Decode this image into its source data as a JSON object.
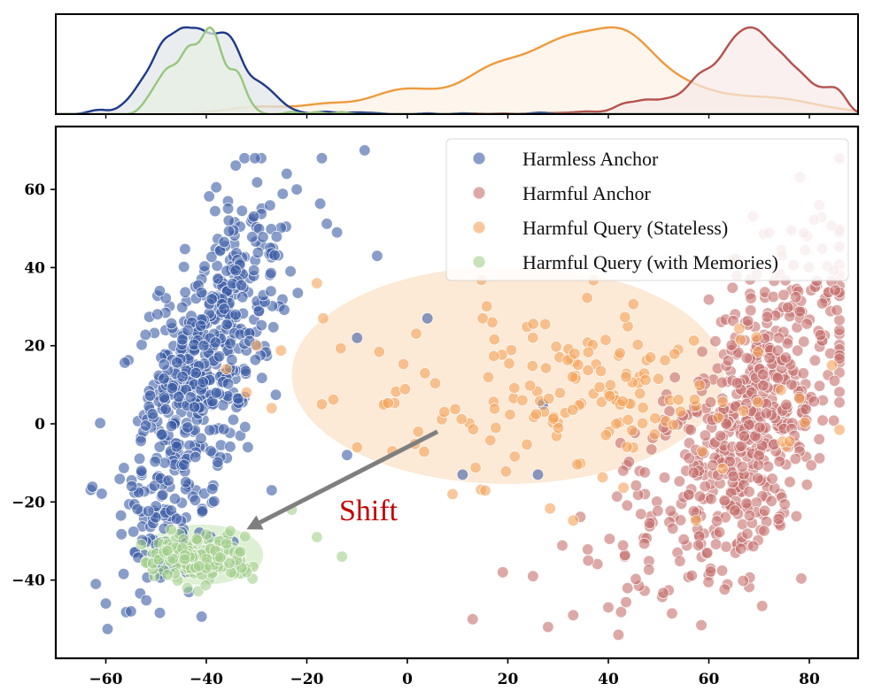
{
  "chart_data": {
    "type": "scatter",
    "title": "",
    "xlabel": "",
    "ylabel": "",
    "xlim": [
      -70,
      90
    ],
    "ylim": [
      -60,
      76
    ],
    "xticks": [
      -60,
      -40,
      -20,
      0,
      20,
      40,
      60,
      80
    ],
    "yticks": [
      -40,
      -20,
      0,
      20,
      40,
      60
    ],
    "x_tick_labels": [
      "−60",
      "−40",
      "−20",
      "0",
      "20",
      "40",
      "60",
      "80"
    ],
    "y_tick_labels": [
      "−40",
      "−20",
      "0",
      "20",
      "40",
      "60"
    ],
    "grid": false,
    "legend_position": "top-right",
    "annotation": {
      "text": "Shift",
      "color": "#c00000",
      "arrow_from": [
        6,
        -2
      ],
      "arrow_to": [
        -32,
        -27
      ]
    },
    "series": [
      {
        "name": "Harmless Anchor",
        "color": "#3b5ba5",
        "kde_color": "#1f3a8a",
        "kde_fill": "#dfe6ea",
        "clusters": [
          {
            "center": [
              -40,
              18
            ],
            "spread": [
              6,
              18
            ],
            "tilt": 0.78,
            "count": 520
          },
          {
            "center": [
              -48,
              -25
            ],
            "spread": [
              5,
              10
            ],
            "tilt": 0.4,
            "count": 90
          }
        ],
        "outliers": [
          [
            -8.5,
            70
          ],
          [
            -24,
            64
          ],
          [
            -6,
            43
          ],
          [
            -22,
            60
          ],
          [
            -14,
            49
          ],
          [
            4,
            27
          ],
          [
            -10,
            22
          ],
          [
            -12,
            -8
          ],
          [
            -27,
            -17
          ],
          [
            -62,
            -41
          ],
          [
            -60,
            -46
          ],
          [
            -55,
            -48
          ],
          [
            27,
            5
          ],
          [
            26,
            -13
          ],
          [
            11,
            -13
          ]
        ]
      },
      {
        "name": "Harmful Anchor",
        "color": "#c5706d",
        "kde_color": "#b5524e",
        "kde_fill": "#f6e9e8",
        "clusters": [
          {
            "center": [
              70,
              5
            ],
            "spread": [
              8,
              20
            ],
            "tilt": 0.7,
            "count": 520
          },
          {
            "center": [
              55,
              -25
            ],
            "spread": [
              10,
              10
            ],
            "tilt": 0.3,
            "count": 80
          }
        ],
        "outliers": [
          [
            82,
            56
          ],
          [
            85,
            11
          ],
          [
            33,
            -49
          ],
          [
            28,
            -52
          ],
          [
            42,
            -54
          ],
          [
            40,
            -47
          ],
          [
            13,
            -50
          ],
          [
            19,
            -38
          ],
          [
            25,
            -39
          ],
          [
            36,
            -35
          ]
        ]
      },
      {
        "name": "Harmful Query (Stateless)",
        "color": "#f4a45a",
        "kde_color": "#ee9a3c",
        "kde_fill": "#fdf1e4",
        "clusters": [
          {
            "center": [
              35,
              8
            ],
            "spread": [
              20,
              12
            ],
            "tilt": 0.1,
            "count": 170
          }
        ],
        "outliers": [
          [
            -36,
            14
          ],
          [
            -32,
            8
          ],
          [
            -27,
            4
          ],
          [
            -17,
            5
          ],
          [
            -18,
            36
          ],
          [
            -3,
            -7
          ],
          [
            -10,
            -6
          ],
          [
            15,
            27
          ],
          [
            -30,
            20
          ],
          [
            9,
            -18
          ]
        ]
      },
      {
        "name": "Harmful Query (with Memories)",
        "color": "#a3cf8c",
        "kde_color": "#98c67d",
        "kde_fill": "#e7efe3",
        "clusters": [
          {
            "center": [
              -41,
              -34
            ],
            "spread": [
              5,
              3.2
            ],
            "tilt": 0.15,
            "count": 170
          }
        ],
        "outliers": [
          [
            -18,
            -29
          ],
          [
            -13,
            -34
          ],
          [
            -23,
            -22
          ]
        ]
      }
    ]
  }
}
